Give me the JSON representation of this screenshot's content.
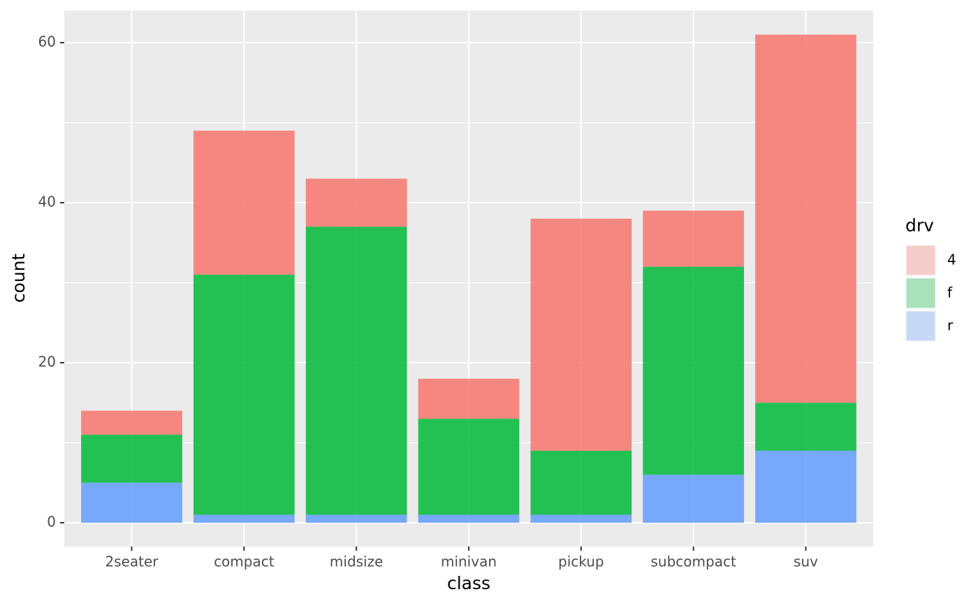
{
  "chart_data": {
    "type": "bar",
    "stacked": true,
    "x_label": "class",
    "y_label": "count",
    "legend_title": "drv",
    "categories": [
      "2seater",
      "compact",
      "midsize",
      "minivan",
      "pickup",
      "subcompact",
      "suv"
    ],
    "series": [
      {
        "name": "4",
        "color": "#F8766D",
        "values": [
          3,
          18,
          6,
          5,
          29,
          7,
          46
        ]
      },
      {
        "name": "f",
        "color": "#00BA38",
        "values": [
          6,
          30,
          36,
          12,
          8,
          26,
          6
        ]
      },
      {
        "name": "r",
        "color": "#619CFF",
        "values": [
          5,
          1,
          1,
          1,
          1,
          6,
          9
        ]
      }
    ],
    "ylim": [
      -2.97,
      64.02
    ],
    "yticks": [
      0,
      20,
      40,
      60
    ],
    "grid": true
  }
}
